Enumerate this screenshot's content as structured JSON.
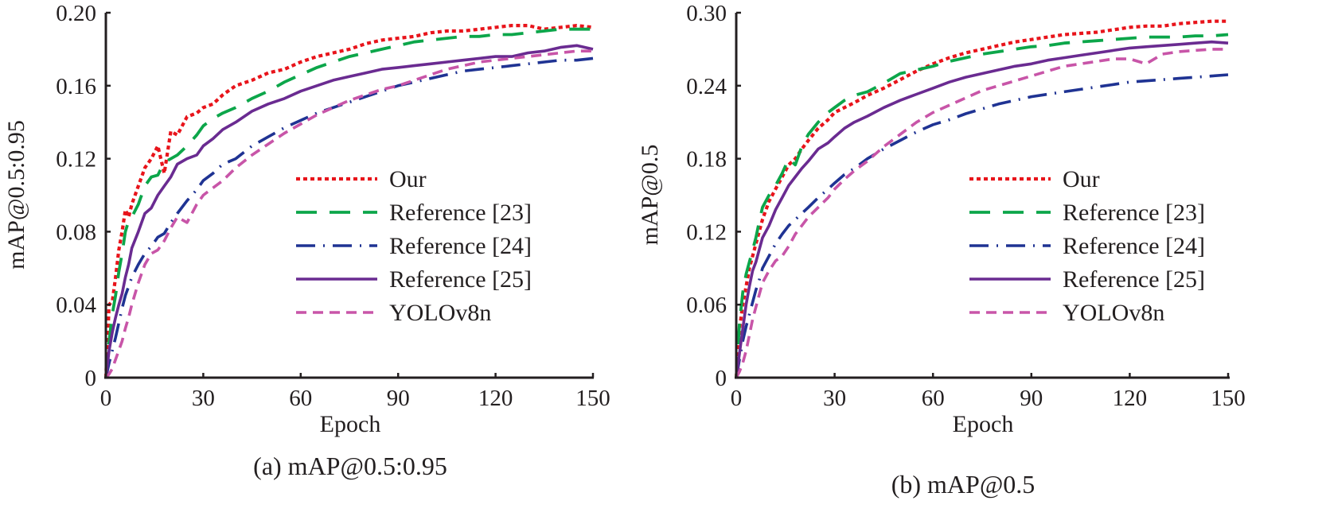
{
  "chart_data": [
    {
      "type": "line",
      "title": "(a) mAP@0.5:0.95",
      "xlabel": "Epoch",
      "ylabel": "mAP@0.5:0.95",
      "xlim": [
        0,
        150
      ],
      "ylim": [
        0,
        0.2
      ],
      "xticks": [
        "0",
        "30",
        "60",
        "90",
        "120",
        "150"
      ],
      "yticks": [
        "0",
        "0.04",
        "0.08",
        "0.12",
        "0.16",
        "0.20"
      ],
      "grid": false,
      "legend_position": "center-right",
      "x": [
        0,
        1,
        2,
        3,
        4,
        5,
        6,
        7,
        8,
        10,
        12,
        14,
        16,
        18,
        20,
        22,
        25,
        28,
        30,
        33,
        36,
        40,
        45,
        50,
        55,
        60,
        65,
        70,
        75,
        80,
        85,
        90,
        95,
        100,
        105,
        110,
        115,
        120,
        125,
        130,
        135,
        140,
        145,
        150
      ],
      "series": [
        {
          "name": "Our",
          "color": "#e8141b",
          "dash": "dotted",
          "values": [
            0,
            0.04,
            0.042,
            0.055,
            0.07,
            0.08,
            0.092,
            0.088,
            0.095,
            0.105,
            0.115,
            0.12,
            0.127,
            0.112,
            0.135,
            0.133,
            0.143,
            0.145,
            0.148,
            0.15,
            0.155,
            0.16,
            0.163,
            0.167,
            0.169,
            0.173,
            0.176,
            0.178,
            0.18,
            0.183,
            0.185,
            0.186,
            0.187,
            0.189,
            0.19,
            0.19,
            0.191,
            0.192,
            0.193,
            0.193,
            0.191,
            0.192,
            0.193,
            0.192
          ]
        },
        {
          "name": "Reference [23]",
          "color": "#0ca64a",
          "dash": "long-dash",
          "values": [
            0,
            0.02,
            0.035,
            0.045,
            0.058,
            0.068,
            0.08,
            0.086,
            0.088,
            0.095,
            0.105,
            0.11,
            0.111,
            0.118,
            0.12,
            0.122,
            0.127,
            0.133,
            0.138,
            0.142,
            0.145,
            0.148,
            0.153,
            0.157,
            0.162,
            0.166,
            0.17,
            0.173,
            0.176,
            0.178,
            0.18,
            0.182,
            0.184,
            0.185,
            0.186,
            0.187,
            0.187,
            0.188,
            0.188,
            0.189,
            0.19,
            0.191,
            0.191,
            0.191
          ]
        },
        {
          "name": "Reference [24]",
          "color": "#1f3393",
          "dash": "dash-dot",
          "values": [
            0,
            0.008,
            0.015,
            0.022,
            0.03,
            0.038,
            0.045,
            0.05,
            0.055,
            0.062,
            0.068,
            0.072,
            0.077,
            0.079,
            0.085,
            0.09,
            0.097,
            0.103,
            0.108,
            0.112,
            0.117,
            0.12,
            0.127,
            0.132,
            0.137,
            0.141,
            0.145,
            0.148,
            0.151,
            0.154,
            0.157,
            0.16,
            0.162,
            0.164,
            0.166,
            0.168,
            0.169,
            0.17,
            0.171,
            0.172,
            0.173,
            0.174,
            0.174,
            0.175
          ]
        },
        {
          "name": "Reference [25]",
          "color": "#6a2b91",
          "dash": "solid",
          "values": [
            0,
            0.015,
            0.025,
            0.033,
            0.04,
            0.046,
            0.055,
            0.062,
            0.071,
            0.08,
            0.09,
            0.093,
            0.1,
            0.105,
            0.11,
            0.117,
            0.12,
            0.122,
            0.127,
            0.131,
            0.136,
            0.14,
            0.146,
            0.15,
            0.153,
            0.157,
            0.16,
            0.163,
            0.165,
            0.167,
            0.169,
            0.17,
            0.171,
            0.172,
            0.173,
            0.174,
            0.175,
            0.176,
            0.176,
            0.178,
            0.179,
            0.181,
            0.182,
            0.18
          ]
        },
        {
          "name": "YOLOv8n",
          "color": "#c855a8",
          "dash": "short-dash",
          "values": [
            0,
            0.002,
            0.005,
            0.01,
            0.015,
            0.02,
            0.027,
            0.033,
            0.04,
            0.052,
            0.062,
            0.068,
            0.07,
            0.075,
            0.082,
            0.088,
            0.085,
            0.095,
            0.1,
            0.104,
            0.108,
            0.115,
            0.122,
            0.128,
            0.134,
            0.139,
            0.144,
            0.148,
            0.152,
            0.155,
            0.158,
            0.16,
            0.163,
            0.166,
            0.169,
            0.171,
            0.173,
            0.174,
            0.175,
            0.176,
            0.177,
            0.178,
            0.179,
            0.179
          ]
        }
      ]
    },
    {
      "type": "line",
      "title": "(b) mAP@0.5",
      "xlabel": "Epoch",
      "ylabel": "mAP@0.5",
      "xlim": [
        0,
        150
      ],
      "ylim": [
        0,
        0.3
      ],
      "xticks": [
        "0",
        "30",
        "60",
        "90",
        "120",
        "150"
      ],
      "yticks": [
        "0",
        "0.06",
        "0.12",
        "0.18",
        "0.24",
        "0.30"
      ],
      "grid": false,
      "legend_position": "center-right",
      "x": [
        0,
        1,
        2,
        3,
        4,
        5,
        6,
        7,
        8,
        10,
        12,
        14,
        16,
        18,
        20,
        22,
        25,
        28,
        30,
        33,
        36,
        40,
        45,
        50,
        55,
        60,
        65,
        70,
        75,
        80,
        85,
        90,
        95,
        100,
        105,
        110,
        115,
        120,
        125,
        130,
        135,
        140,
        145,
        150
      ],
      "series": [
        {
          "name": "Our",
          "color": "#e8141b",
          "dash": "dotted",
          "values": [
            0,
            0.04,
            0.06,
            0.075,
            0.09,
            0.1,
            0.11,
            0.12,
            0.13,
            0.145,
            0.155,
            0.165,
            0.175,
            0.18,
            0.188,
            0.195,
            0.205,
            0.212,
            0.218,
            0.222,
            0.226,
            0.232,
            0.238,
            0.245,
            0.252,
            0.258,
            0.263,
            0.267,
            0.27,
            0.273,
            0.276,
            0.278,
            0.28,
            0.282,
            0.283,
            0.284,
            0.286,
            0.288,
            0.289,
            0.289,
            0.291,
            0.292,
            0.293,
            0.293
          ]
        },
        {
          "name": "Reference [23]",
          "color": "#0ca64a",
          "dash": "long-dash",
          "values": [
            0,
            0.045,
            0.07,
            0.085,
            0.095,
            0.105,
            0.115,
            0.128,
            0.14,
            0.15,
            0.158,
            0.168,
            0.18,
            0.175,
            0.19,
            0.2,
            0.21,
            0.218,
            0.222,
            0.228,
            0.232,
            0.235,
            0.242,
            0.25,
            0.253,
            0.256,
            0.26,
            0.263,
            0.266,
            0.268,
            0.27,
            0.272,
            0.273,
            0.275,
            0.276,
            0.277,
            0.278,
            0.279,
            0.28,
            0.28,
            0.28,
            0.281,
            0.281,
            0.282
          ]
        },
        {
          "name": "Reference [24]",
          "color": "#1f3393",
          "dash": "dash-dot",
          "values": [
            0,
            0.015,
            0.03,
            0.042,
            0.052,
            0.062,
            0.072,
            0.08,
            0.09,
            0.1,
            0.11,
            0.118,
            0.125,
            0.13,
            0.135,
            0.14,
            0.148,
            0.155,
            0.16,
            0.167,
            0.172,
            0.18,
            0.188,
            0.195,
            0.202,
            0.208,
            0.212,
            0.217,
            0.221,
            0.225,
            0.228,
            0.231,
            0.233,
            0.235,
            0.237,
            0.239,
            0.241,
            0.243,
            0.244,
            0.245,
            0.246,
            0.247,
            0.248,
            0.249
          ]
        },
        {
          "name": "Reference [25]",
          "color": "#6a2b91",
          "dash": "solid",
          "values": [
            0,
            0.02,
            0.04,
            0.06,
            0.075,
            0.088,
            0.095,
            0.105,
            0.115,
            0.125,
            0.138,
            0.148,
            0.158,
            0.165,
            0.172,
            0.178,
            0.188,
            0.193,
            0.198,
            0.205,
            0.21,
            0.215,
            0.222,
            0.228,
            0.233,
            0.238,
            0.243,
            0.247,
            0.25,
            0.253,
            0.256,
            0.258,
            0.261,
            0.263,
            0.265,
            0.267,
            0.269,
            0.271,
            0.272,
            0.273,
            0.274,
            0.275,
            0.276,
            0.275
          ]
        },
        {
          "name": "YOLOv8n",
          "color": "#c855a8",
          "dash": "short-dash",
          "values": [
            0,
            0.005,
            0.012,
            0.022,
            0.035,
            0.048,
            0.058,
            0.068,
            0.078,
            0.088,
            0.096,
            0.1,
            0.108,
            0.118,
            0.125,
            0.132,
            0.14,
            0.148,
            0.155,
            0.163,
            0.17,
            0.178,
            0.19,
            0.2,
            0.21,
            0.218,
            0.224,
            0.23,
            0.236,
            0.24,
            0.244,
            0.248,
            0.252,
            0.256,
            0.258,
            0.26,
            0.262,
            0.262,
            0.258,
            0.266,
            0.268,
            0.269,
            0.27,
            0.27
          ]
        }
      ]
    }
  ]
}
